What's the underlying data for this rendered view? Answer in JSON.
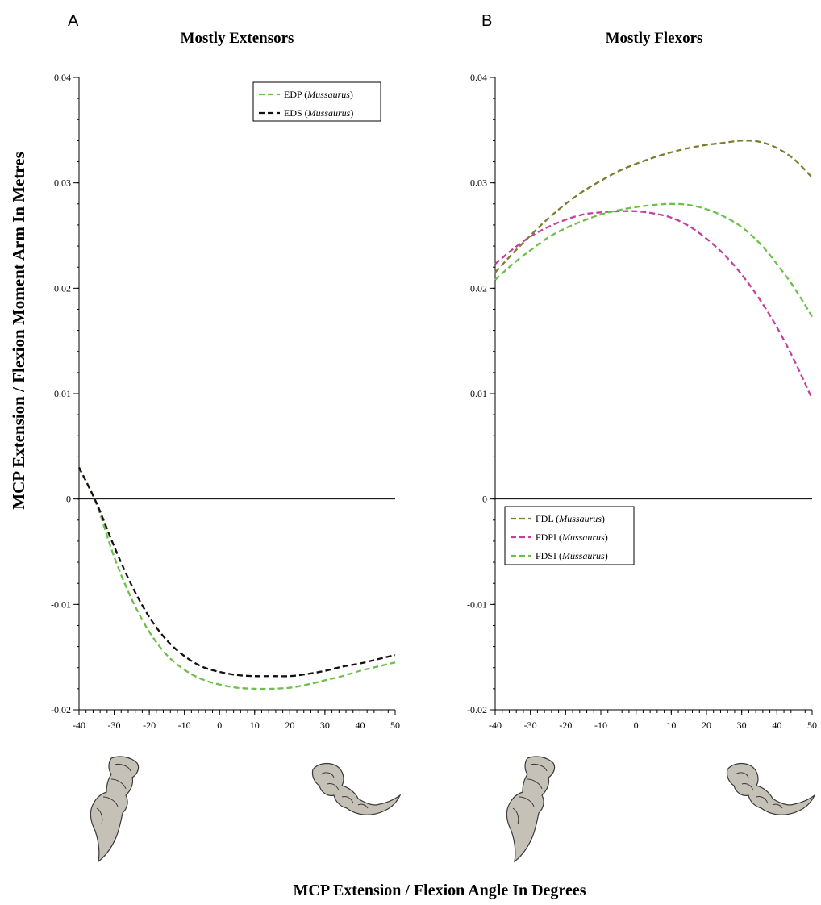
{
  "figure": {
    "ylabel": "MCP Extension / Flexion Moment Arm In Metres",
    "xlabel": "MCP Extension / Flexion Angle In Degrees"
  },
  "chart_data": [
    {
      "type": "line",
      "panel_letter": "A",
      "title": "Mostly Extensors",
      "xlim": [
        -40,
        50
      ],
      "ylim": [
        -0.02,
        0.04
      ],
      "x_ticks": [
        "-40",
        "-30",
        "-20",
        "-10",
        "0",
        "10",
        "20",
        "30",
        "40",
        "50"
      ],
      "y_ticks": [
        "-0.02",
        "-0.01",
        "0",
        "0.01",
        "0.02",
        "0.03",
        "0.04"
      ],
      "grid": false,
      "legend_position": "top-right",
      "series": [
        {
          "name": "EDP",
          "name_italic": "Mussaurus",
          "color": "#6cc04a",
          "x": [
            -40,
            -35,
            -30,
            -25,
            -20,
            -15,
            -10,
            -5,
            0,
            5,
            10,
            15,
            20,
            25,
            30,
            35,
            40,
            45,
            50
          ],
          "y": [
            0.003,
            -0.0005,
            -0.0055,
            -0.0095,
            -0.0126,
            -0.0148,
            -0.0162,
            -0.0171,
            -0.0176,
            -0.0179,
            -0.018,
            -0.018,
            -0.0179,
            -0.0176,
            -0.0172,
            -0.0168,
            -0.0163,
            -0.0159,
            -0.0155
          ]
        },
        {
          "name": "EDS",
          "name_italic": "Mussaurus",
          "color": "#111111",
          "x": [
            -40,
            -35,
            -30,
            -25,
            -20,
            -15,
            -10,
            -5,
            0,
            5,
            10,
            15,
            20,
            25,
            30,
            35,
            40,
            45,
            50
          ],
          "y": [
            0.003,
            -0.0004,
            -0.0045,
            -0.0082,
            -0.0112,
            -0.0134,
            -0.0149,
            -0.0159,
            -0.0164,
            -0.0167,
            -0.0168,
            -0.0168,
            -0.0168,
            -0.0166,
            -0.0163,
            -0.0159,
            -0.0156,
            -0.0152,
            -0.0148
          ]
        }
      ]
    },
    {
      "type": "line",
      "panel_letter": "B",
      "title": "Mostly Flexors",
      "xlim": [
        -40,
        50
      ],
      "ylim": [
        -0.02,
        0.04
      ],
      "x_ticks": [
        "-40",
        "-30",
        "-20",
        "-10",
        "0",
        "10",
        "20",
        "30",
        "40",
        "50"
      ],
      "y_ticks": [
        "-0.02",
        "-0.01",
        "0",
        "0.01",
        "0.02",
        "0.03",
        "0.04"
      ],
      "grid": false,
      "legend_position": "center-left",
      "series": [
        {
          "name": "FDL",
          "name_italic": "Mussaurus",
          "color": "#7a7f2e",
          "x": [
            -40,
            -35,
            -30,
            -25,
            -20,
            -15,
            -10,
            -5,
            0,
            5,
            10,
            15,
            20,
            25,
            30,
            35,
            40,
            45,
            50
          ],
          "y": [
            0.0215,
            0.0233,
            0.025,
            0.0266,
            0.028,
            0.0292,
            0.0302,
            0.0311,
            0.0318,
            0.0324,
            0.0329,
            0.0333,
            0.0336,
            0.0338,
            0.034,
            0.0339,
            0.0333,
            0.0322,
            0.0305
          ]
        },
        {
          "name": "FDPI",
          "name_italic": "Mussaurus",
          "color": "#c43f9e",
          "x": [
            -40,
            -35,
            -30,
            -25,
            -20,
            -15,
            -10,
            -5,
            0,
            5,
            10,
            15,
            20,
            25,
            30,
            35,
            40,
            45,
            50
          ],
          "y": [
            0.0223,
            0.0237,
            0.0249,
            0.0258,
            0.0265,
            0.027,
            0.0272,
            0.0273,
            0.0273,
            0.0271,
            0.0267,
            0.0259,
            0.0247,
            0.0232,
            0.0213,
            0.019,
            0.0163,
            0.0131,
            0.0095
          ]
        },
        {
          "name": "FDSI",
          "name_italic": "Mussaurus",
          "color": "#6cc04a",
          "x": [
            -40,
            -35,
            -30,
            -25,
            -20,
            -15,
            -10,
            -5,
            0,
            5,
            10,
            15,
            20,
            25,
            30,
            35,
            40,
            45,
            50
          ],
          "y": [
            0.0208,
            0.0223,
            0.0236,
            0.0248,
            0.0257,
            0.0264,
            0.027,
            0.0274,
            0.0277,
            0.0279,
            0.028,
            0.0279,
            0.0275,
            0.0268,
            0.0258,
            0.0243,
            0.0223,
            0.02,
            0.0173
          ]
        }
      ]
    }
  ]
}
